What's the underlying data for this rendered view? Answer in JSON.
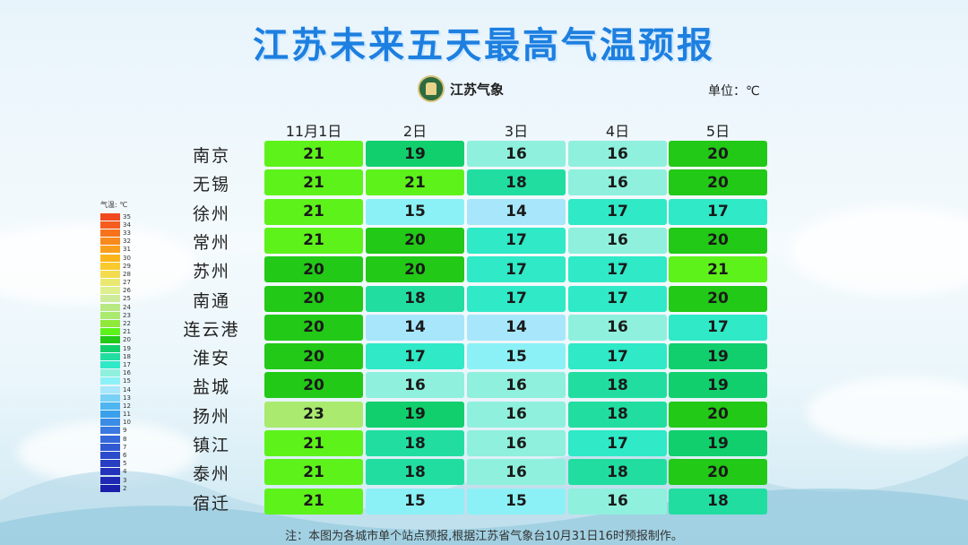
{
  "title": "江苏未来五天最高气温预报",
  "logo_text": "江苏气象",
  "unit": "单位：℃",
  "colors": {
    "title": "#1d7fe0"
  },
  "days": [
    "11月1日",
    "2日",
    "3日",
    "4日",
    "5日"
  ],
  "cities": [
    {
      "name": "南京",
      "temps": [
        "21",
        "19",
        "16",
        "16",
        "20"
      ]
    },
    {
      "name": "无锡",
      "temps": [
        "21",
        "21",
        "18",
        "16",
        "20"
      ]
    },
    {
      "name": "徐州",
      "temps": [
        "21",
        "15",
        "14",
        "17",
        "17"
      ]
    },
    {
      "name": "常州",
      "temps": [
        "21",
        "20",
        "17",
        "16",
        "20"
      ]
    },
    {
      "name": "苏州",
      "temps": [
        "20",
        "20",
        "17",
        "17",
        "21"
      ]
    },
    {
      "name": "南通",
      "temps": [
        "20",
        "18",
        "17",
        "17",
        "20"
      ]
    },
    {
      "name": "连云港",
      "temps": [
        "20",
        "14",
        "14",
        "16",
        "17"
      ]
    },
    {
      "name": "淮安",
      "temps": [
        "20",
        "17",
        "15",
        "17",
        "19"
      ]
    },
    {
      "name": "盐城",
      "temps": [
        "20",
        "16",
        "16",
        "18",
        "19"
      ]
    },
    {
      "name": "扬州",
      "temps": [
        "23",
        "19",
        "16",
        "18",
        "20"
      ]
    },
    {
      "name": "镇江",
      "temps": [
        "21",
        "18",
        "16",
        "17",
        "19"
      ]
    },
    {
      "name": "泰州",
      "temps": [
        "21",
        "18",
        "16",
        "18",
        "20"
      ]
    },
    {
      "name": "宿迁",
      "temps": [
        "21",
        "15",
        "15",
        "16",
        "18"
      ]
    }
  ],
  "legend": {
    "header": "气温: ℃",
    "levels": [
      "35",
      "34",
      "33",
      "32",
      "31",
      "30",
      "29",
      "28",
      "27",
      "26",
      "25",
      "24",
      "23",
      "22",
      "21",
      "20",
      "19",
      "18",
      "17",
      "16",
      "15",
      "14",
      "13",
      "12",
      "11",
      "10",
      "9",
      "8",
      "7",
      "6",
      "5",
      "4",
      "3",
      "2"
    ]
  },
  "note": "注：本图为各城市单个站点预报,根据江苏省气象台10月31日16时预报制作。"
}
